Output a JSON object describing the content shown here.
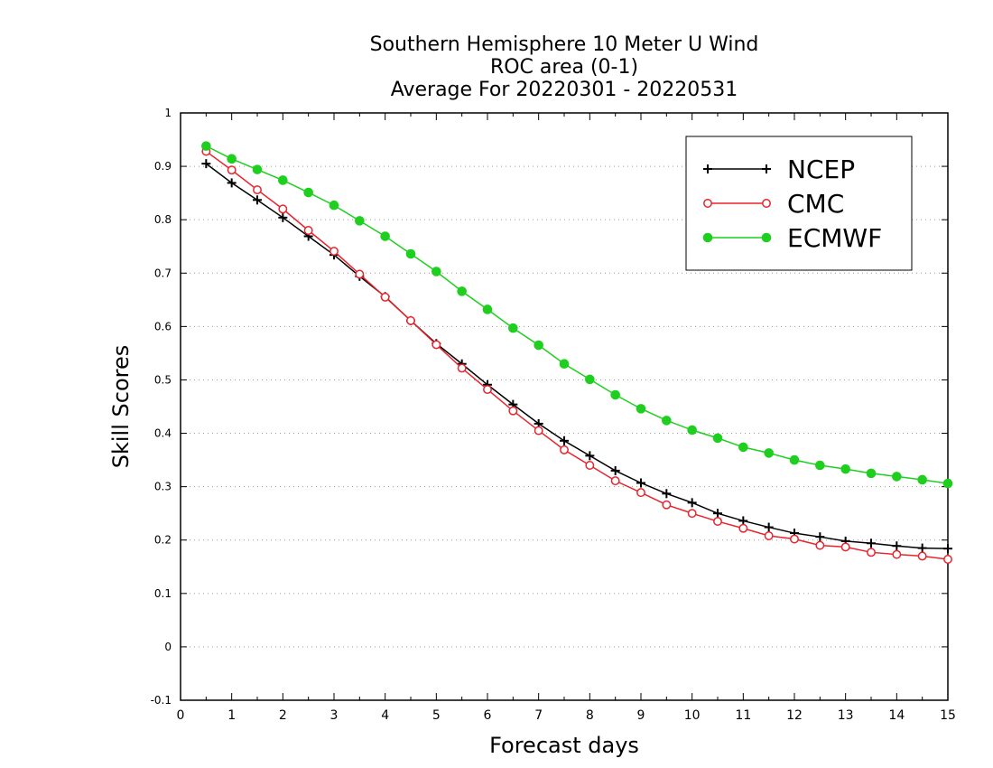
{
  "chart_data": {
    "type": "line",
    "title": [
      "Southern Hemisphere 10 Meter U Wind",
      "ROC area (0-1)",
      "Average For 20220301 - 20220531"
    ],
    "xlabel": "Forecast days",
    "ylabel": "Skill Scores",
    "xlim": [
      0,
      15
    ],
    "ylim": [
      -0.1,
      1
    ],
    "xticks": [
      0,
      1,
      2,
      3,
      4,
      5,
      6,
      7,
      8,
      9,
      10,
      11,
      12,
      13,
      14,
      15
    ],
    "xtick_labels": [
      "0",
      "1",
      "2",
      "3",
      "4",
      "5",
      "6",
      "7",
      "8",
      "9",
      "10",
      "11",
      "12",
      "13",
      "14",
      "15"
    ],
    "yticks": [
      -0.1,
      0,
      0.1,
      0.2,
      0.3,
      0.4,
      0.5,
      0.6,
      0.7,
      0.8,
      0.9,
      1
    ],
    "ytick_labels": [
      "-0.1",
      "0",
      "0.1",
      "0.2",
      "0.3",
      "0.4",
      "0.5",
      "0.6",
      "0.7",
      "0.8",
      "0.9",
      "1"
    ],
    "grid": "horizontal dotted",
    "legend_position": "top-right",
    "x": [
      0.5,
      1,
      1.5,
      2,
      2.5,
      3,
      3.5,
      4,
      4.5,
      5,
      5.5,
      6,
      6.5,
      7,
      7.5,
      8,
      8.5,
      9,
      9.5,
      10,
      10.5,
      11,
      11.5,
      12,
      12.5,
      13,
      13.5,
      14,
      14.5,
      15
    ],
    "series": [
      {
        "name": "NCEP",
        "color": "#000000",
        "marker": "plus",
        "values": [
          0.905,
          0.869,
          0.837,
          0.804,
          0.769,
          0.734,
          0.694,
          0.656,
          0.611,
          0.568,
          0.53,
          0.491,
          0.454,
          0.418,
          0.386,
          0.358,
          0.33,
          0.307,
          0.287,
          0.27,
          0.25,
          0.236,
          0.224,
          0.213,
          0.206,
          0.198,
          0.194,
          0.189,
          0.185,
          0.184
        ]
      },
      {
        "name": "CMC",
        "color": "#e8242c",
        "marker": "open-circle",
        "values": [
          0.928,
          0.893,
          0.856,
          0.82,
          0.78,
          0.741,
          0.698,
          0.655,
          0.611,
          0.566,
          0.522,
          0.482,
          0.442,
          0.405,
          0.369,
          0.34,
          0.311,
          0.289,
          0.266,
          0.25,
          0.235,
          0.222,
          0.208,
          0.202,
          0.19,
          0.187,
          0.177,
          0.173,
          0.17,
          0.164
        ]
      },
      {
        "name": "ECMWF",
        "color": "#1fcf1f",
        "marker": "filled-circle",
        "values": [
          0.938,
          0.914,
          0.894,
          0.874,
          0.851,
          0.827,
          0.798,
          0.769,
          0.736,
          0.703,
          0.666,
          0.632,
          0.597,
          0.565,
          0.53,
          0.501,
          0.472,
          0.446,
          0.424,
          0.406,
          0.391,
          0.374,
          0.363,
          0.35,
          0.34,
          0.333,
          0.325,
          0.319,
          0.313,
          0.306
        ]
      }
    ]
  }
}
